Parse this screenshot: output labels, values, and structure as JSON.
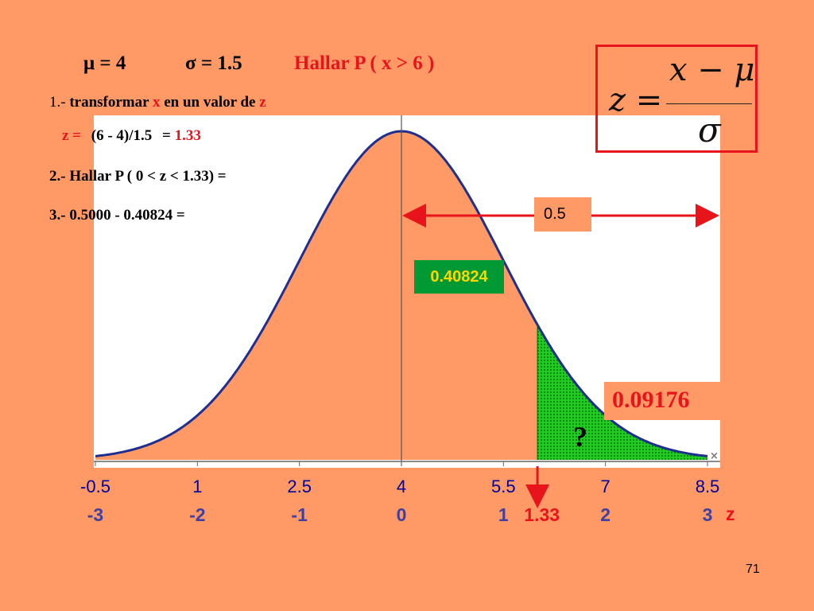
{
  "header": {
    "mu_label": "μ = 4",
    "sigma_label": "σ = 1.5",
    "task": "Hallar P ( x > 6 )"
  },
  "steps": {
    "s1_num": "1.-",
    "s1_a": "transformar",
    "s1_x": "x",
    "s1_b": "en un valor de",
    "s1_z": "z",
    "z_label": "z =",
    "z_expr": "(6 - 4)/1.5",
    "z_eq": "=",
    "z_val": "1.33",
    "s2": "2.- Hallar P ( 0 < z < 1.33) =",
    "s3": "3.- 0.5000 - 0.40824 ="
  },
  "formula": {
    "lhs": "z =",
    "numerator": "x − μ",
    "denominator": "σ"
  },
  "annotations": {
    "half": "0.5",
    "area_mid": "0.40824",
    "answer": "0.09176",
    "question": "?"
  },
  "page_number": "71",
  "colors": {
    "background": "#FF9966",
    "highlight_red": "#E8141C",
    "shade_green": "#22CC22",
    "label_green": "#009933",
    "axis_blue": "#00009A"
  },
  "chart_data": {
    "type": "area",
    "distribution": "normal",
    "mean": 4,
    "sd": 1.5,
    "x_ticks": [
      -0.5,
      1,
      2.5,
      4,
      5.5,
      7,
      8.5
    ],
    "x_tick_labels": [
      "-0.5",
      "1",
      "2.5",
      "4",
      "5.5",
      "7",
      "8.5"
    ],
    "z_ticks": [
      -3,
      -2,
      -1,
      0,
      1,
      1.33,
      2,
      3
    ],
    "z_tick_labels": [
      "-3",
      "-2",
      "-1",
      "0",
      "1",
      "1.33",
      "2",
      "3"
    ],
    "z_axis_label": "z",
    "xlim": [
      -0.6,
      8.6
    ],
    "shaded_region": {
      "from_x": 6,
      "to_x": 8.5,
      "area": 0.09176
    },
    "marker_x": 6
  }
}
